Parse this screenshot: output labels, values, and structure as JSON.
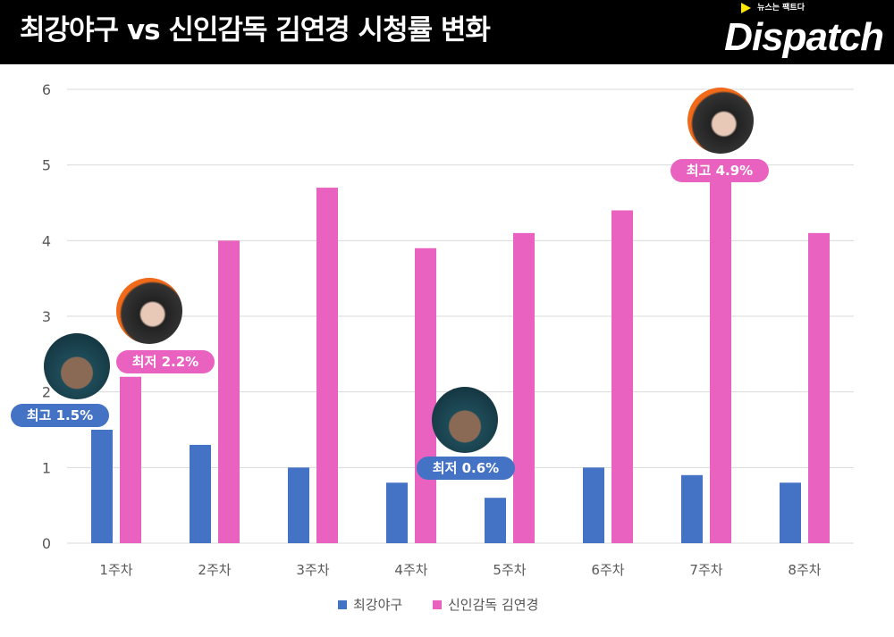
{
  "header": {
    "title": "최강야구 vs 신인감독 김연경 시청률 변화",
    "logo": "Dispatch",
    "logo_tagline": "뉴스는 팩트다"
  },
  "chart_data": {
    "type": "bar",
    "title": "최강야구 vs 신인감독 김연경 시청률 변화",
    "categories": [
      "1주차",
      "2주차",
      "3주차",
      "4주차",
      "5주차",
      "6주차",
      "7주차",
      "8주차"
    ],
    "series": [
      {
        "name": "최강야구",
        "color": "#4472c4",
        "values": [
          1.5,
          1.3,
          1.0,
          0.8,
          0.6,
          1.0,
          0.9,
          0.8
        ]
      },
      {
        "name": "신인감독 김연경",
        "color": "#ea62c0",
        "values": [
          2.2,
          4.0,
          4.7,
          3.9,
          4.1,
          4.4,
          4.9,
          4.1
        ]
      }
    ],
    "ylim": [
      0,
      6
    ],
    "yticks": [
      "0",
      "1",
      "2",
      "3",
      "4",
      "5",
      "6"
    ],
    "grid": true,
    "legend": "bottom",
    "annotations": [
      {
        "text": "최고 1.5%",
        "series": 0,
        "category": 0
      },
      {
        "text": "최저 2.2%",
        "series": 1,
        "category": 0
      },
      {
        "text": "최저 0.6%",
        "series": 0,
        "category": 4
      },
      {
        "text": "최고 4.9%",
        "series": 1,
        "category": 6
      }
    ]
  }
}
